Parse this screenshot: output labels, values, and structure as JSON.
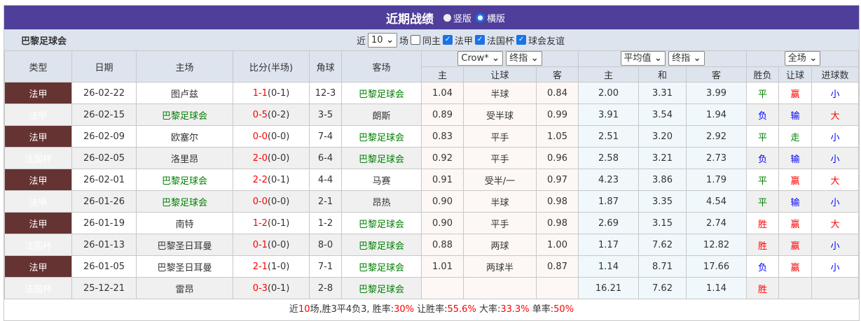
{
  "title": "近期战绩",
  "view_options": [
    "竖版",
    "横版"
  ],
  "view_selected": "横版",
  "team": "巴黎足球会",
  "filter": {
    "prefix": "近",
    "count": "10",
    "suffix": "场",
    "same_home": "同主",
    "same_home_checked": false,
    "leagues": [
      {
        "label": "法甲",
        "checked": true
      },
      {
        "label": "法国杯",
        "checked": true
      },
      {
        "label": "球会友谊",
        "checked": true
      }
    ]
  },
  "header": {
    "type": "类型",
    "date": "日期",
    "home": "主场",
    "score": "比分(半场)",
    "corner": "角球",
    "away": "客场",
    "company": "Crow*",
    "odds_type1": "终指",
    "avg": "平均值",
    "odds_type2": "终指",
    "period": "全场",
    "ah": [
      "主",
      "让球",
      "客"
    ],
    "eu": [
      "主",
      "和",
      "客"
    ],
    "res": [
      "胜负",
      "让球",
      "进球数"
    ]
  },
  "colors": {
    "法甲": "#663333",
    "法国杯": "#2a7ca8",
    "title_bg": "#4f3f9a"
  },
  "rows": [
    {
      "type": "法甲",
      "date": "26-02-22",
      "home": "图卢兹",
      "ft": "1-1",
      "ht": "(0-1)",
      "corner": "12-3",
      "away": "巴黎足球会",
      "hw": "1.04",
      "line": "半球",
      "aw": "0.84",
      "e1": "2.00",
      "ex": "3.31",
      "e2": "3.99",
      "wdl": "平",
      "ah": "赢",
      "ou": "小"
    },
    {
      "type": "法甲",
      "date": "26-02-15",
      "home": "巴黎足球会",
      "ft": "0-5",
      "ht": "(0-2)",
      "corner": "3-5",
      "away": "朗斯",
      "hw": "0.89",
      "line": "受半球",
      "aw": "0.99",
      "e1": "3.91",
      "ex": "3.54",
      "e2": "1.94",
      "wdl": "负",
      "ah": "输",
      "ou": "大"
    },
    {
      "type": "法甲",
      "date": "26-02-09",
      "home": "欧塞尔",
      "ft": "0-0",
      "ht": "(0-0)",
      "corner": "7-4",
      "away": "巴黎足球会",
      "hw": "0.83",
      "line": "平手",
      "aw": "1.05",
      "e1": "2.51",
      "ex": "3.20",
      "e2": "2.92",
      "wdl": "平",
      "ah": "走",
      "ou": "小"
    },
    {
      "type": "法国杯",
      "date": "26-02-05",
      "home": "洛里昂",
      "ft": "2-0",
      "ht": "(0-0)",
      "corner": "6-4",
      "away": "巴黎足球会",
      "hw": "0.92",
      "line": "平手",
      "aw": "0.96",
      "e1": "2.58",
      "ex": "3.21",
      "e2": "2.73",
      "wdl": "负",
      "ah": "输",
      "ou": "小"
    },
    {
      "type": "法甲",
      "date": "26-02-01",
      "home": "巴黎足球会",
      "ft": "2-2",
      "ht": "(0-1)",
      "corner": "4-4",
      "away": "马赛",
      "hw": "0.91",
      "line": "受半/一",
      "aw": "0.97",
      "e1": "4.23",
      "ex": "3.86",
      "e2": "1.79",
      "wdl": "平",
      "ah": "赢",
      "ou": "大"
    },
    {
      "type": "法甲",
      "date": "26-01-26",
      "home": "巴黎足球会",
      "ft": "0-0",
      "ht": "(0-0)",
      "corner": "2-1",
      "away": "昂热",
      "hw": "0.90",
      "line": "半球",
      "aw": "0.98",
      "e1": "1.87",
      "ex": "3.35",
      "e2": "4.54",
      "wdl": "平",
      "ah": "输",
      "ou": "小"
    },
    {
      "type": "法甲",
      "date": "26-01-19",
      "home": "南特",
      "ft": "1-2",
      "ht": "(0-1)",
      "corner": "1-2",
      "away": "巴黎足球会",
      "hw": "0.90",
      "line": "平手",
      "aw": "0.98",
      "e1": "2.69",
      "ex": "3.15",
      "e2": "2.74",
      "wdl": "胜",
      "ah": "赢",
      "ou": "大"
    },
    {
      "type": "法国杯",
      "date": "26-01-13",
      "home": "巴黎圣日耳曼",
      "ft": "0-1",
      "ht": "(0-0)",
      "corner": "8-0",
      "away": "巴黎足球会",
      "hw": "0.88",
      "line": "两球",
      "aw": "1.00",
      "e1": "1.17",
      "ex": "7.62",
      "e2": "12.82",
      "wdl": "胜",
      "ah": "赢",
      "ou": "小"
    },
    {
      "type": "法甲",
      "date": "26-01-05",
      "home": "巴黎圣日耳曼",
      "ft": "2-1",
      "ht": "(1-0)",
      "corner": "7-1",
      "away": "巴黎足球会",
      "hw": "1.01",
      "line": "两球半",
      "aw": "0.87",
      "e1": "1.14",
      "ex": "8.71",
      "e2": "17.66",
      "wdl": "负",
      "ah": "赢",
      "ou": "小"
    },
    {
      "type": "法国杯",
      "date": "25-12-21",
      "home": "雷昂",
      "ft": "0-3",
      "ht": "(0-1)",
      "corner": "2-8",
      "away": "巴黎足球会",
      "hw": "",
      "line": "",
      "aw": "",
      "e1": "16.21",
      "ex": "7.62",
      "e2": "1.14",
      "wdl": "胜",
      "ah": "",
      "ou": ""
    }
  ],
  "summary": {
    "p1": "近",
    "n": "10",
    "p2": "场,胜3平4负3, 胜率:",
    "win": "30%",
    "p3": " 让胜率:",
    "ahwin": "55.6%",
    "p4": " 大率:",
    "big": "33.3%",
    "p5": " 单率:",
    "odd": "50%"
  }
}
